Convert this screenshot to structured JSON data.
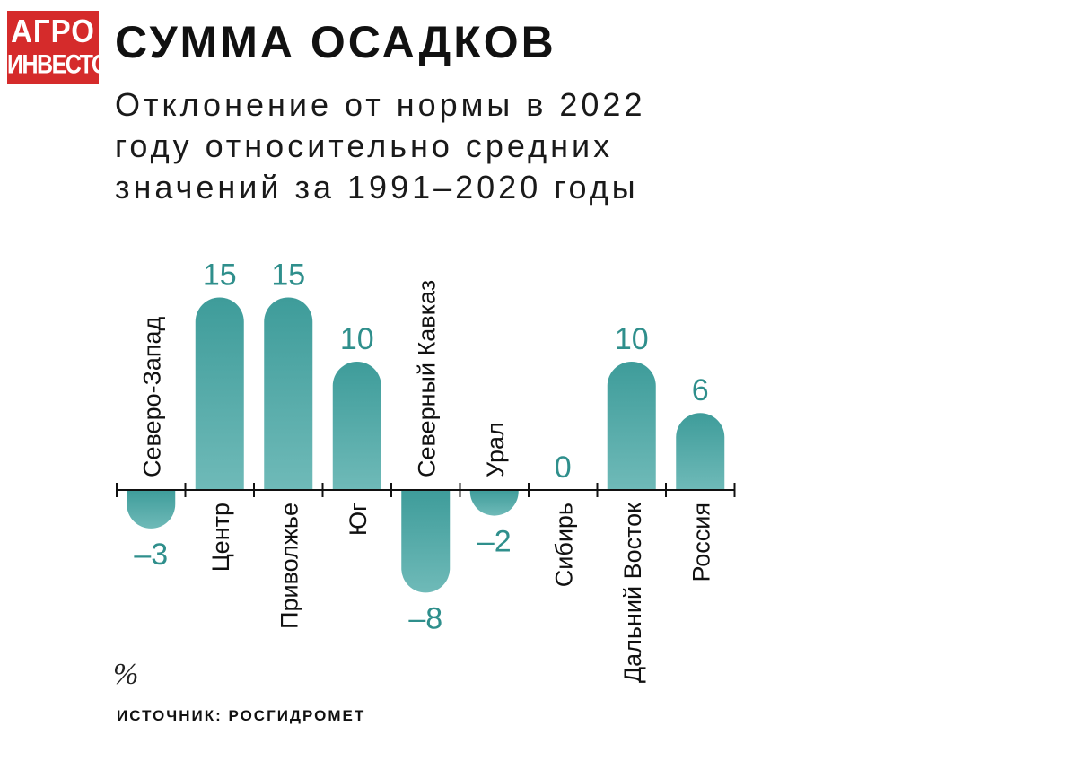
{
  "logo": {
    "line1": "АГРО",
    "line2": "ИНВЕСТОР"
  },
  "title": "СУММА ОСАДКОВ",
  "subtitle_lines": [
    "Отклонение от нормы в 2022",
    "году относительно средних",
    "значений за 1991–2020 годы"
  ],
  "unit": "%",
  "source": "ИСТОЧНИК: РОСГИДРОМЕТ",
  "colors": {
    "bar": "#3e9c9a",
    "bar_light": "#6fbab8",
    "value_text": "#2f8f8c",
    "logo_bg": "#d52b2b"
  },
  "chart_data": {
    "type": "bar",
    "categories": [
      "Северо-Запад",
      "Центр",
      "Приволжье",
      "Юг",
      "Северный Кавказ",
      "Урал",
      "Сибирь",
      "Дальний Восток",
      "Россия"
    ],
    "values": [
      -3,
      15,
      15,
      10,
      -8,
      -2,
      0,
      10,
      6
    ],
    "value_labels": [
      "–3",
      "15",
      "15",
      "10",
      "–8",
      "–2",
      "0",
      "10",
      "6"
    ],
    "ylim": [
      -8,
      15
    ],
    "title": "СУММА ОСАДКОВ",
    "xlabel": "",
    "ylabel": "%",
    "grid": false,
    "legend": "none"
  }
}
